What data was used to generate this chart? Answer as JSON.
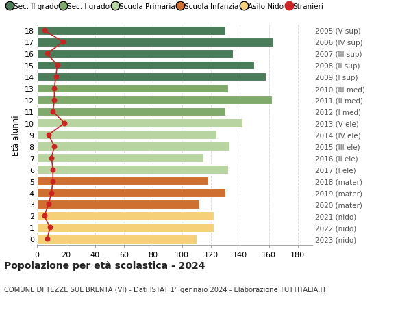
{
  "ages": [
    18,
    17,
    16,
    15,
    14,
    13,
    12,
    11,
    10,
    9,
    8,
    7,
    6,
    5,
    4,
    3,
    2,
    1,
    0
  ],
  "right_labels": [
    "2005 (V sup)",
    "2006 (IV sup)",
    "2007 (III sup)",
    "2008 (II sup)",
    "2009 (I sup)",
    "2010 (III med)",
    "2011 (II med)",
    "2012 (I med)",
    "2013 (V ele)",
    "2014 (IV ele)",
    "2015 (III ele)",
    "2016 (II ele)",
    "2017 (I ele)",
    "2018 (mater)",
    "2019 (mater)",
    "2020 (mater)",
    "2021 (nido)",
    "2022 (nido)",
    "2023 (nido)"
  ],
  "bar_values": [
    130,
    163,
    135,
    150,
    158,
    132,
    162,
    130,
    142,
    124,
    133,
    115,
    132,
    118,
    130,
    112,
    122,
    122,
    110
  ],
  "bar_colors": [
    "#4a7c59",
    "#4a7c59",
    "#4a7c59",
    "#4a7c59",
    "#4a7c59",
    "#7faa6b",
    "#7faa6b",
    "#7faa6b",
    "#b8d4a0",
    "#b8d4a0",
    "#b8d4a0",
    "#b8d4a0",
    "#b8d4a0",
    "#d07030",
    "#d07030",
    "#d07030",
    "#f5d078",
    "#f5d078",
    "#f5d078"
  ],
  "stranieri_values": [
    5,
    18,
    7,
    14,
    13,
    12,
    12,
    11,
    19,
    8,
    12,
    10,
    11,
    11,
    10,
    8,
    5,
    9,
    7
  ],
  "legend_labels": [
    "Sec. II grado",
    "Sec. I grado",
    "Scuola Primaria",
    "Scuola Infanzia",
    "Asilo Nido",
    "Stranieri"
  ],
  "legend_colors": [
    "#4a7c59",
    "#7faa6b",
    "#b8d4a0",
    "#d07030",
    "#f5d078",
    "#cc2222"
  ],
  "xlabel_ticks": [
    0,
    20,
    40,
    60,
    80,
    100,
    120,
    140,
    160,
    180
  ],
  "xlim": [
    0,
    190
  ],
  "ylabel_left": "Età alunni",
  "title": "Popolazione per età scolastica - 2024",
  "subtitle": "COMUNE DI TEZZE SUL BRENTA (VI) - Dati ISTAT 1° gennaio 2024 - Elaborazione TUTTITALIA.IT",
  "bg_color": "#ffffff",
  "grid_color": "#dddddd"
}
